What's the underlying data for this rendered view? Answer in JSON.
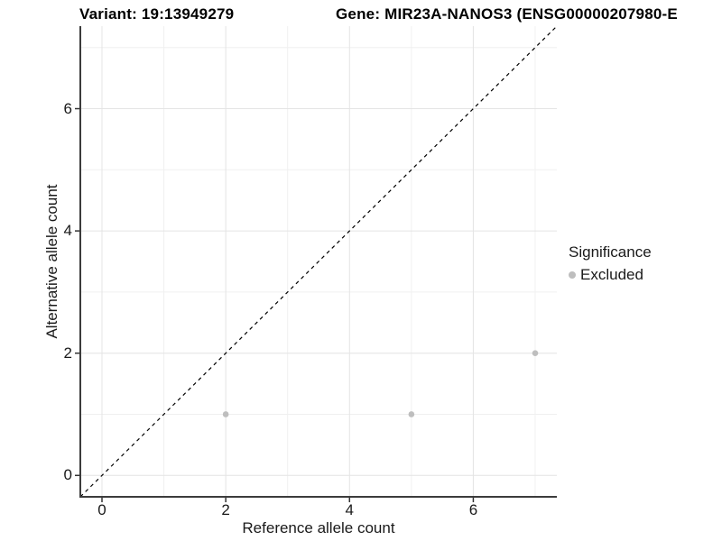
{
  "titles": {
    "variant": "Variant: 19:13949279",
    "gene": "Gene: MIR23A-NANOS3 (ENSG00000207980-E"
  },
  "legend": {
    "title": "Significance",
    "items": [
      {
        "label": "Excluded",
        "color": "#bebebe"
      }
    ]
  },
  "colors": {
    "point": "#bebebe",
    "identity_line": "#000000",
    "axis_line": "#3c3c3c",
    "grid_major": "#e4e4e4",
    "grid_minor": "#f0f0f0",
    "tick_mark": "#333333",
    "text": "#1a1a1a"
  },
  "chart_data": {
    "type": "scatter",
    "title_left": "Variant: 19:13949279",
    "title_right": "Gene: MIR23A-NANOS3 (ENSG00000207980-E",
    "xlabel": "Reference allele count",
    "ylabel": "Alternative allele count",
    "xlim": [
      -0.35,
      7.35
    ],
    "ylim": [
      -0.35,
      7.35
    ],
    "x_major_ticks": [
      0,
      2,
      4,
      6
    ],
    "y_major_ticks": [
      0,
      2,
      4,
      6
    ],
    "x_minor_ticks": [
      1,
      3,
      5,
      7
    ],
    "y_minor_ticks": [
      1,
      3,
      5,
      7
    ],
    "grid": true,
    "legend_position": "right",
    "series": [
      {
        "name": "Excluded",
        "color": "#bebebe",
        "point_radius": 3.3,
        "points": [
          [
            2,
            1
          ],
          [
            5,
            1
          ],
          [
            7,
            2
          ]
        ]
      }
    ],
    "reference_line": {
      "type": "identity",
      "style": "dashed",
      "color": "#000000",
      "from": [
        -0.35,
        -0.35
      ],
      "to": [
        7.35,
        7.35
      ]
    }
  }
}
